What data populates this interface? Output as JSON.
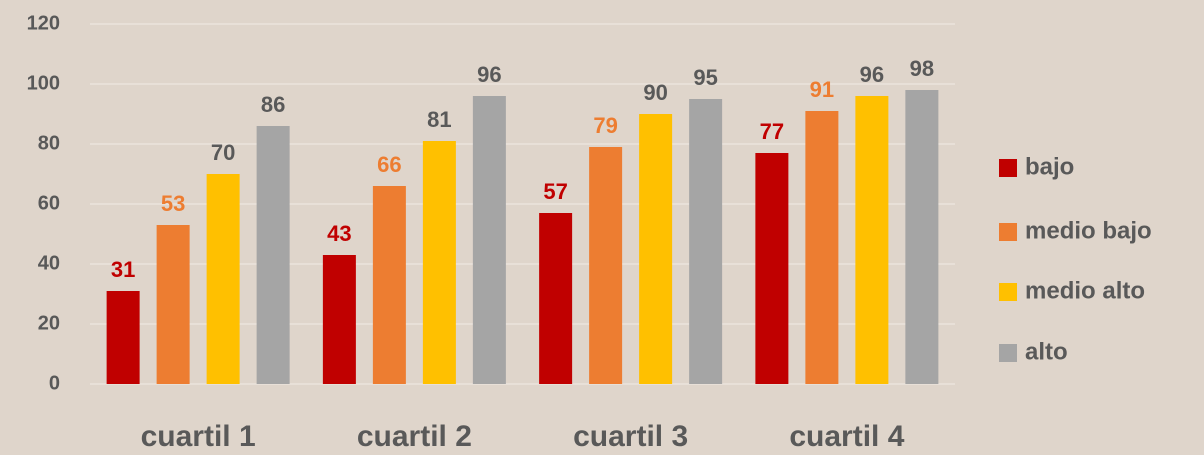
{
  "chart_data": {
    "type": "bar",
    "categories": [
      "cuartil 1",
      "cuartil 2",
      "cuartil 3",
      "cuartil 4"
    ],
    "series": [
      {
        "name": "bajo",
        "color": "#c00000",
        "label_color": "#c00000",
        "values": [
          31,
          43,
          57,
          77
        ]
      },
      {
        "name": "medio bajo",
        "color": "#ed7d31",
        "label_color": "#ed7d31",
        "values": [
          53,
          66,
          79,
          91
        ]
      },
      {
        "name": "medio alto",
        "color": "#ffc000",
        "label_color": "#595959",
        "values": [
          70,
          81,
          90,
          96
        ]
      },
      {
        "name": "alto",
        "color": "#a5a5a5",
        "label_color": "#595959",
        "values": [
          86,
          96,
          95,
          98
        ]
      }
    ],
    "ylim": [
      0,
      120
    ],
    "yticks": [
      0,
      20,
      40,
      60,
      80,
      100,
      120
    ],
    "grid": true,
    "legend": "right"
  }
}
